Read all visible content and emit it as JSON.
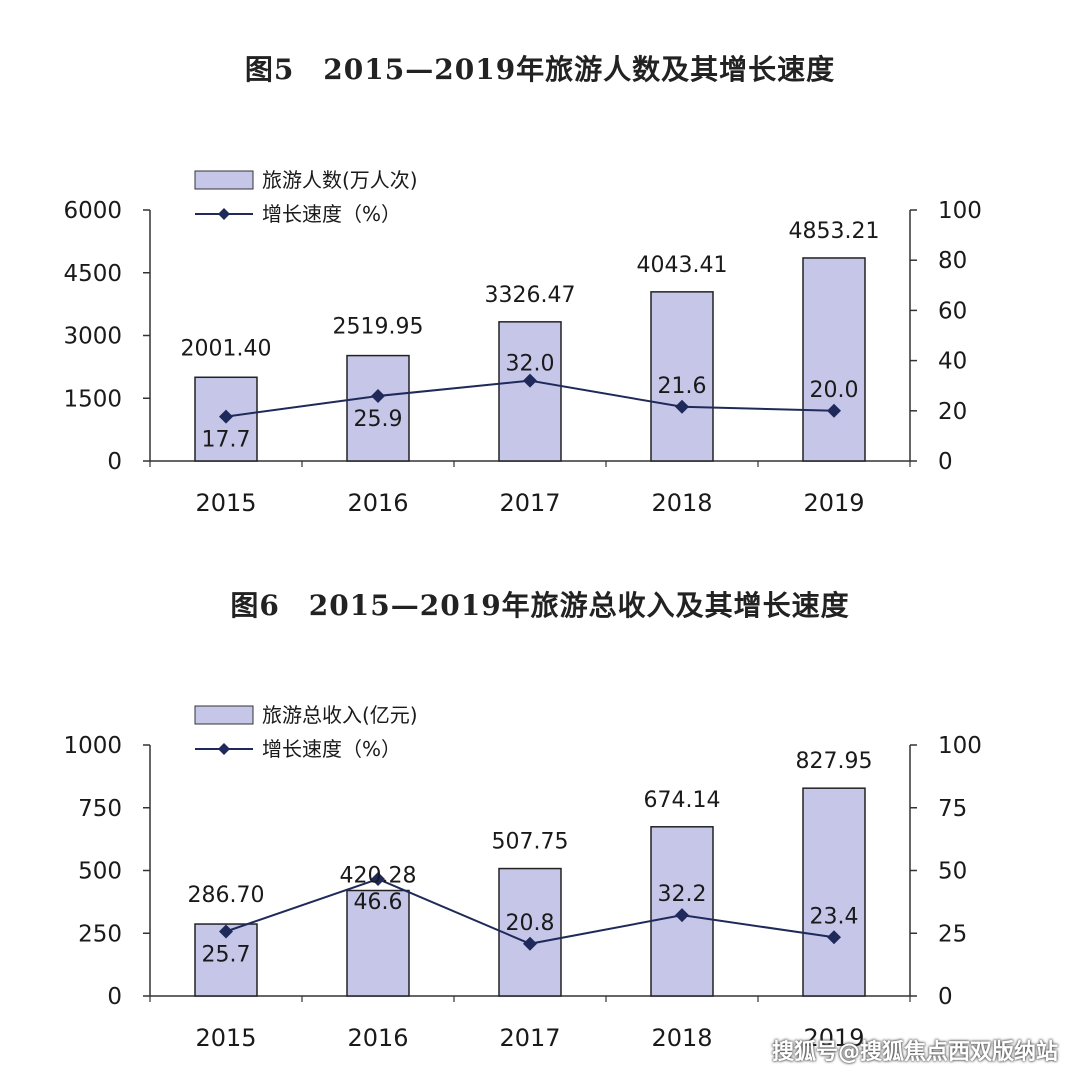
{
  "charts": [
    {
      "title": "图5　2015—2019年旅游人数及其增长速度",
      "legend_bar": "旅游人数(万人次)",
      "legend_line": "增长速度（%）"
    },
    {
      "title": "图6　2015—2019年旅游总收入及其增长速度",
      "legend_bar": "旅游总收入(亿元)",
      "legend_line": "增长速度（%）"
    }
  ],
  "chart_data": [
    {
      "type": "bar",
      "title": "图5　2015—2019年旅游人数及其增长速度",
      "categories": [
        "2015",
        "2016",
        "2017",
        "2018",
        "2019"
      ],
      "series": [
        {
          "name": "旅游人数(万人次)",
          "type": "bar",
          "axis": "left",
          "values": [
            2001.4,
            2519.95,
            3326.47,
            4043.41,
            4853.21
          ],
          "labels": [
            "2001.40",
            "2519.95",
            "3326.47",
            "4043.41",
            "4853.21"
          ]
        },
        {
          "name": "增长速度（%）",
          "type": "line",
          "axis": "right",
          "values": [
            17.7,
            25.9,
            32.0,
            21.6,
            20.0
          ],
          "labels": [
            "17.7",
            "25.9",
            "32.0",
            "21.6",
            "20.0"
          ]
        }
      ],
      "ylim_left": [
        0,
        6000
      ],
      "yticks_left": [
        "0",
        "1500",
        "3000",
        "4500",
        "6000"
      ],
      "ylim_right": [
        0,
        100
      ],
      "yticks_right": [
        "0",
        "20",
        "40",
        "60",
        "80",
        "100"
      ],
      "legend": "top-left",
      "grid": false,
      "bar_color": "#c5c6e8",
      "line_color": "#1f2a5a"
    },
    {
      "type": "bar",
      "title": "图6　2015—2019年旅游总收入及其增长速度",
      "categories": [
        "2015",
        "2016",
        "2017",
        "2018",
        "2019"
      ],
      "series": [
        {
          "name": "旅游总收入(亿元)",
          "type": "bar",
          "axis": "left",
          "values": [
            286.7,
            420.28,
            507.75,
            674.14,
            827.95
          ],
          "labels": [
            "286.70",
            "420.28",
            "507.75",
            "674.14",
            "827.95"
          ]
        },
        {
          "name": "增长速度（%）",
          "type": "line",
          "axis": "right",
          "values": [
            25.7,
            46.6,
            20.8,
            32.2,
            23.4
          ],
          "labels": [
            "25.7",
            "46.6",
            "20.8",
            "32.2",
            "23.4"
          ]
        }
      ],
      "ylim_left": [
        0,
        1000
      ],
      "yticks_left": [
        "0",
        "250",
        "500",
        "750",
        "1000"
      ],
      "ylim_right": [
        0,
        100
      ],
      "yticks_right": [
        "0",
        "25",
        "50",
        "75",
        "100"
      ],
      "legend": "top-left",
      "grid": false,
      "bar_color": "#c5c6e8",
      "line_color": "#1f2a5a"
    }
  ],
  "watermark": "搜狐号@搜狐焦点西双版纳站"
}
